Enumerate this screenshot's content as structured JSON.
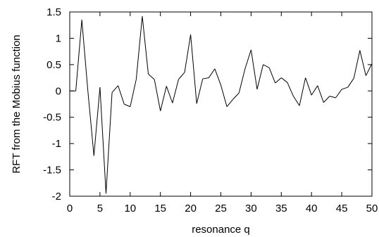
{
  "chart_data": {
    "type": "line",
    "title": "",
    "xlabel": "resonance q",
    "ylabel": "RFT from the Mobius function",
    "xlim": [
      0,
      50
    ],
    "ylim": [
      -2,
      1.5
    ],
    "grid": false,
    "legend": "none",
    "x_ticks": [
      0,
      5,
      10,
      15,
      20,
      25,
      30,
      35,
      40,
      45,
      50
    ],
    "x_tick_labels": [
      "0",
      "5",
      "10",
      "15",
      "20",
      "25",
      "30",
      "35",
      "40",
      "45",
      "50"
    ],
    "y_ticks": [
      1.5,
      1,
      0.5,
      0,
      -0.5,
      -1,
      -1.5,
      -2
    ],
    "y_tick_labels": [
      "1.5",
      "1",
      "0.5",
      "0",
      "-0.5",
      "-1",
      "-1.5",
      "-2"
    ],
    "series": [
      {
        "line_color": "#000000",
        "x": [
          0,
          1,
          2,
          3,
          4,
          5,
          6,
          7,
          8,
          9,
          10,
          11,
          12,
          13,
          14,
          15,
          16,
          17,
          18,
          19,
          20,
          21,
          22,
          23,
          24,
          25,
          26,
          27,
          28,
          29,
          30,
          31,
          32,
          33,
          34,
          35,
          36,
          37,
          38,
          39,
          40,
          41,
          42,
          43,
          44,
          45,
          46,
          47,
          48,
          49,
          50
        ],
        "y": [
          0,
          0,
          1.35,
          0,
          -1.23,
          0.07,
          -1.95,
          -0.03,
          0.1,
          -0.25,
          -0.3,
          0.22,
          1.42,
          0.32,
          0.22,
          -0.38,
          0.09,
          -0.23,
          0.22,
          0.35,
          1.07,
          -0.24,
          0.23,
          0.25,
          0.42,
          0.11,
          -0.3,
          -0.16,
          -0.04,
          0.42,
          0.78,
          0.03,
          0.5,
          0.44,
          0.15,
          0.25,
          0.16,
          -0.1,
          -0.28,
          0.25,
          -0.08,
          0.1,
          -0.22,
          -0.1,
          -0.13,
          0.03,
          0.07,
          0.24,
          0.77,
          0.29,
          0.52
        ]
      }
    ]
  }
}
